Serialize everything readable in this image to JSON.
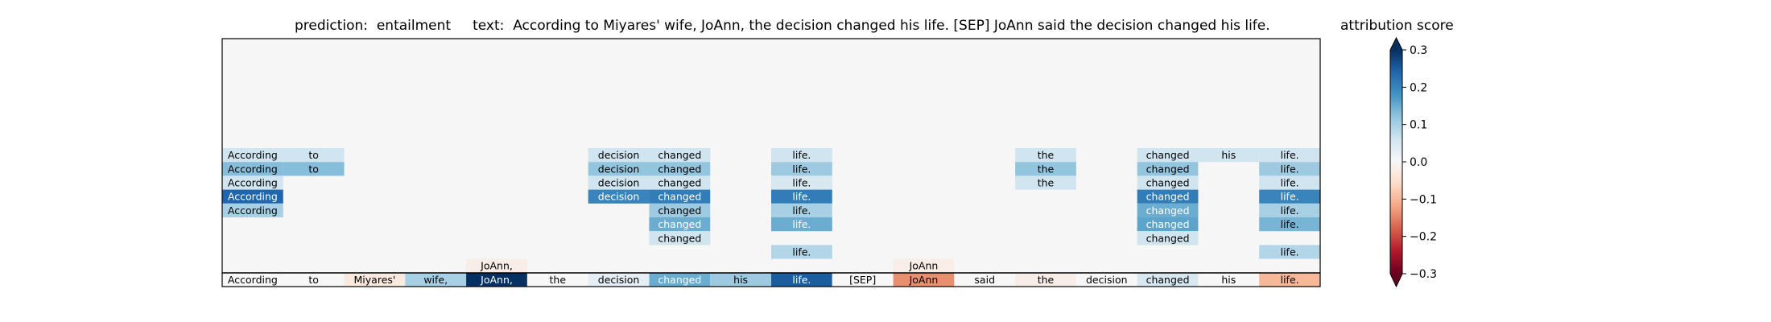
{
  "title": {
    "prediction_label": "prediction:",
    "prediction_value": "entailment",
    "text_label": "text:",
    "text_value": "According to Miyares' wife, JoAnn, the decision changed his life. [SEP] JoAnn said the decision changed his life."
  },
  "colorbar": {
    "title": "attribution score",
    "min": -0.3,
    "max": 0.3,
    "ticks": [
      "0.3",
      "0.2",
      "0.1",
      "0.0",
      "−0.1",
      "−0.2",
      "−0.3"
    ],
    "tick_values": [
      0.3,
      0.2,
      0.1,
      0.0,
      -0.1,
      -0.2,
      -0.3
    ],
    "colormap": "RdBu"
  },
  "colors": {
    "axes_background": "#f5f6f5",
    "separator": "#000000"
  },
  "chart_data": {
    "type": "heatmap",
    "tokens": [
      "According",
      "to",
      "Miyares'",
      "wife,",
      "JoAnn,",
      "the",
      "decision",
      "changed",
      "his",
      "life.",
      "[SEP]",
      "JoAnn",
      "said",
      "the",
      "decision",
      "changed",
      "his",
      "life."
    ],
    "bottom_row_scores": [
      0.0,
      0.0,
      -0.03,
      0.1,
      0.3,
      0.0,
      0.03,
      0.15,
      0.11,
      0.25,
      0.0,
      -0.14,
      0.0,
      -0.02,
      0.0,
      0.05,
      0.0,
      -0.1
    ],
    "layer_rows": [
      {
        "cells": [
          [
            0,
            "According",
            0.06
          ],
          [
            1,
            "to",
            0.06
          ],
          [
            6,
            "decision",
            0.06
          ],
          [
            7,
            "changed",
            0.06
          ],
          [
            9,
            "life.",
            0.06
          ],
          [
            13,
            "the",
            0.06
          ],
          [
            15,
            "changed",
            0.06
          ],
          [
            16,
            "his",
            0.06
          ],
          [
            17,
            "life.",
            0.06
          ]
        ]
      },
      {
        "cells": [
          [
            0,
            "According",
            0.13
          ],
          [
            1,
            "to",
            0.13
          ],
          [
            6,
            "decision",
            0.12
          ],
          [
            7,
            "changed",
            0.12
          ],
          [
            9,
            "life.",
            0.11
          ],
          [
            13,
            "the",
            0.12
          ],
          [
            15,
            "changed",
            0.12
          ],
          [
            17,
            "life.",
            0.11
          ]
        ]
      },
      {
        "cells": [
          [
            0,
            "According",
            0.06
          ],
          [
            6,
            "decision",
            0.06
          ],
          [
            7,
            "changed",
            0.06
          ],
          [
            9,
            "life.",
            0.05
          ],
          [
            13,
            "the",
            0.06
          ],
          [
            15,
            "changed",
            0.06
          ],
          [
            17,
            "life.",
            0.06
          ]
        ]
      },
      {
        "cells": [
          [
            0,
            "According",
            0.24
          ],
          [
            6,
            "decision",
            0.2
          ],
          [
            7,
            "changed",
            0.21
          ],
          [
            9,
            "life.",
            0.21
          ],
          [
            15,
            "changed",
            0.21
          ],
          [
            17,
            "life.",
            0.2
          ]
        ]
      },
      {
        "cells": [
          [
            0,
            "According",
            0.1
          ],
          [
            7,
            "changed",
            0.11
          ],
          [
            9,
            "life.",
            0.1
          ],
          [
            15,
            "changed",
            0.15
          ],
          [
            17,
            "life.",
            0.1
          ]
        ]
      },
      {
        "cells": [
          [
            7,
            "changed",
            0.15
          ],
          [
            9,
            "life.",
            0.15
          ],
          [
            15,
            "changed",
            0.16
          ],
          [
            17,
            "life.",
            0.14
          ]
        ]
      },
      {
        "cells": [
          [
            7,
            "changed",
            0.06
          ],
          [
            15,
            "changed",
            0.06
          ]
        ]
      },
      {
        "cells": [
          [
            9,
            "life.",
            0.09
          ],
          [
            17,
            "life.",
            0.09
          ]
        ]
      },
      {
        "cells": [
          [
            4,
            "JoAnn,",
            -0.02
          ],
          [
            11,
            "JoAnn",
            -0.02
          ]
        ]
      }
    ]
  }
}
